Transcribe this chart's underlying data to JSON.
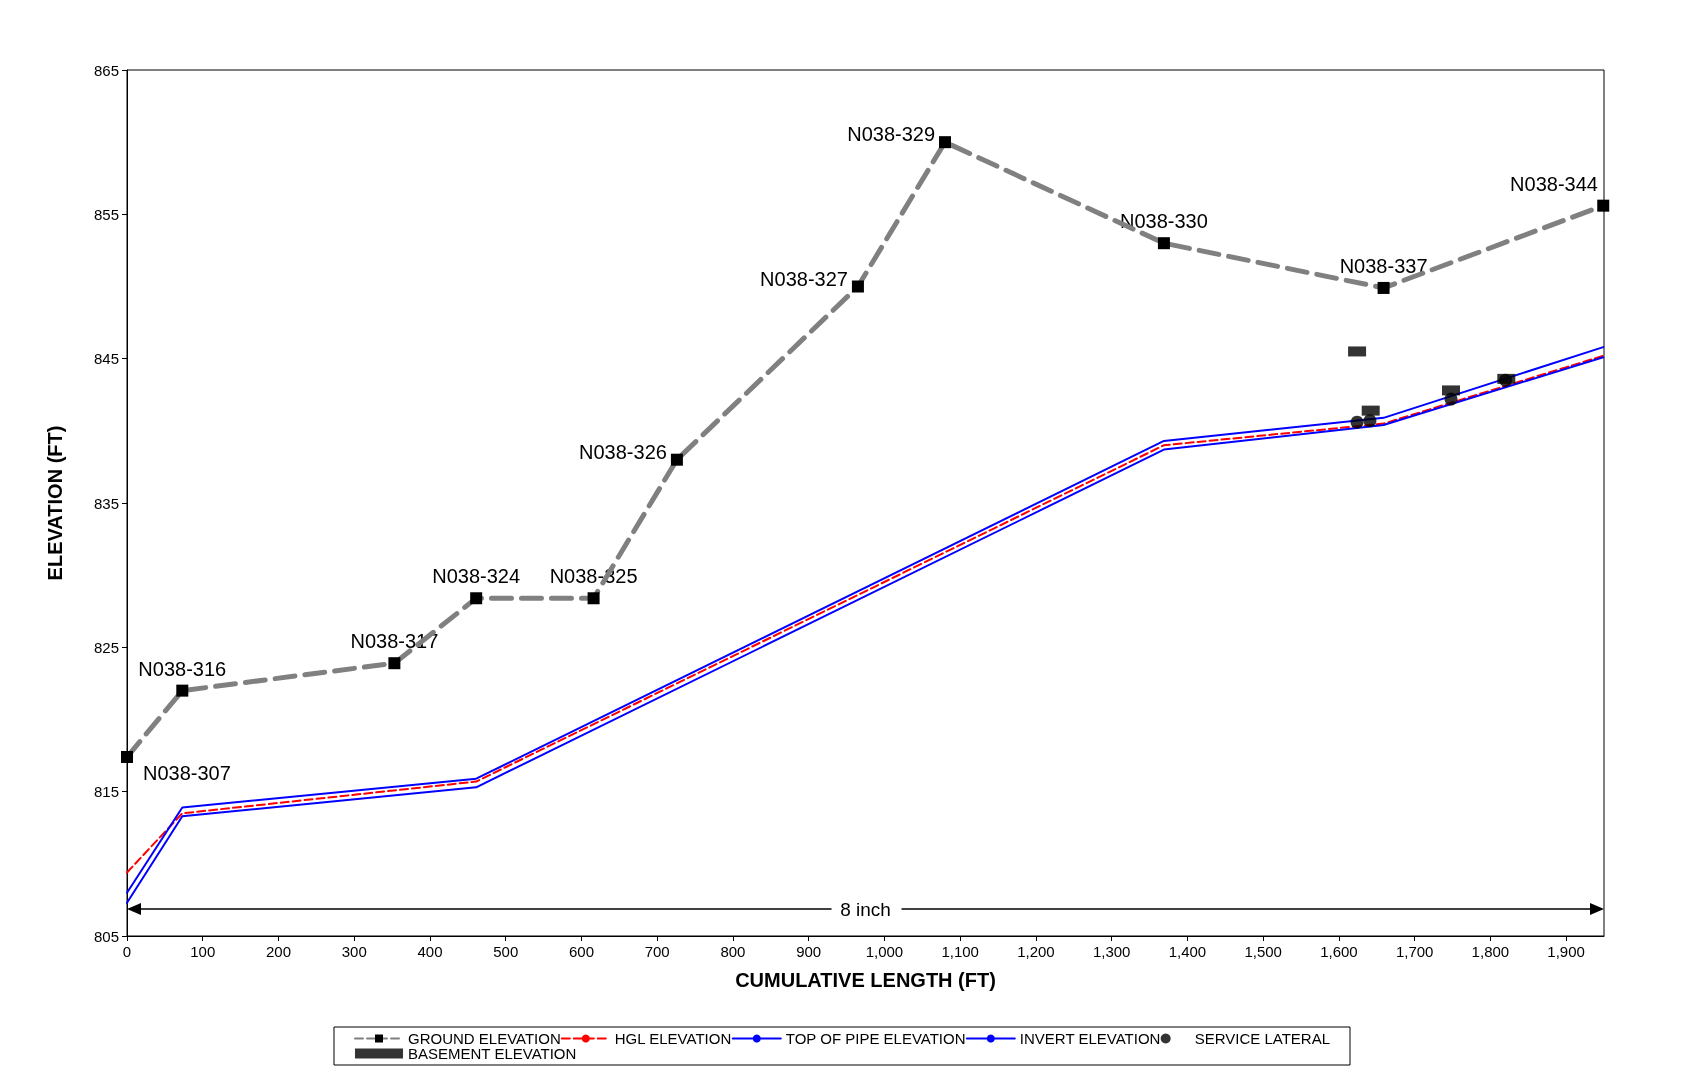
{
  "chart_data": {
    "type": "line",
    "xlabel": "CUMULATIVE LENGTH (FT)",
    "ylabel": "ELEVATION (FT)",
    "xlim": [
      0,
      1950
    ],
    "xticks": [
      0,
      100,
      200,
      300,
      400,
      500,
      600,
      700,
      800,
      900,
      {
        "value": 1000,
        "label": "1,000"
      },
      {
        "value": 1100,
        "label": "1,100"
      },
      {
        "value": 1200,
        "label": "1,200"
      },
      {
        "value": 1300,
        "label": "1,300"
      },
      {
        "value": 1400,
        "label": "1,400"
      },
      {
        "value": 1500,
        "label": "1,500"
      },
      {
        "value": 1600,
        "label": "1,600"
      },
      {
        "value": 1700,
        "label": "1,700"
      },
      {
        "value": 1800,
        "label": "1,800"
      },
      {
        "value": 1900,
        "label": "1,900"
      }
    ],
    "ylim": [
      805,
      865
    ],
    "yticks": [
      805,
      815,
      825,
      835,
      845,
      855,
      865
    ],
    "grid": false,
    "legend": "bottom",
    "series": [
      {
        "name": "GROUND ELEVATION",
        "color": "#808080",
        "marker": "square",
        "line_style": "dashed",
        "x": [
          0,
          73,
          353,
          461,
          616,
          726,
          965,
          1080,
          1369,
          1659,
          1949
        ],
        "values": [
          817.4,
          822.0,
          823.9,
          828.4,
          828.4,
          838.0,
          850.0,
          860.0,
          853.0,
          849.9,
          855.6
        ]
      },
      {
        "name": "HGL ELEVATION",
        "color": "#ff0000",
        "marker": "none",
        "line_style": "dashed",
        "x": [
          0,
          73,
          461,
          1369,
          1659,
          1949
        ],
        "values": [
          809.4,
          813.5,
          815.7,
          839.0,
          840.5,
          845.2
        ]
      },
      {
        "name": "TOP OF PIPE ELEVATION",
        "color": "#0000ff",
        "marker": "none",
        "line_style": "solid",
        "x": [
          0,
          73,
          461,
          1369,
          1659,
          1949
        ],
        "values": [
          808.0,
          813.9,
          815.9,
          839.3,
          840.9,
          845.8
        ]
      },
      {
        "name": "INVERT ELEVATION",
        "color": "#0000ff",
        "marker": "none",
        "line_style": "solid",
        "x": [
          0,
          73,
          461,
          1369,
          1659,
          1949
        ],
        "values": [
          807.3,
          813.3,
          815.3,
          838.7,
          840.4,
          845.1
        ]
      },
      {
        "name": "SERVICE LATERAL",
        "type": "scatter",
        "color": "#000000",
        "marker": "circle",
        "x": [
          1624,
          1641,
          1748,
          1820
        ],
        "values": [
          840.6,
          840.7,
          842.2,
          843.5
        ]
      },
      {
        "name": "BASEMENT ELEVATION",
        "type": "scatter",
        "color": "#000000",
        "marker": "square",
        "x": [
          1624,
          1642,
          1748,
          1821
        ],
        "values": [
          845.5,
          841.4,
          842.8,
          843.6
        ]
      }
    ],
    "annotations": [
      {
        "text": "N038-307",
        "x": 0,
        "y": 817.4
      },
      {
        "text": "N038-316",
        "x": 73,
        "y": 822.0
      },
      {
        "text": "N038-317",
        "x": 353,
        "y": 823.9
      },
      {
        "text": "N038-324",
        "x": 461,
        "y": 828.4
      },
      {
        "text": "N038-325",
        "x": 616,
        "y": 828.4
      },
      {
        "text": "N038-326",
        "x": 726,
        "y": 838.0
      },
      {
        "text": "N038-327",
        "x": 965,
        "y": 850.0
      },
      {
        "text": "N038-329",
        "x": 1080,
        "y": 860.0
      },
      {
        "text": "N038-330",
        "x": 1369,
        "y": 853.0
      },
      {
        "text": "N038-337",
        "x": 1659,
        "y": 849.9
      },
      {
        "text": "N038-344",
        "x": 1949,
        "y": 855.6
      },
      "8 inch"
    ]
  }
}
